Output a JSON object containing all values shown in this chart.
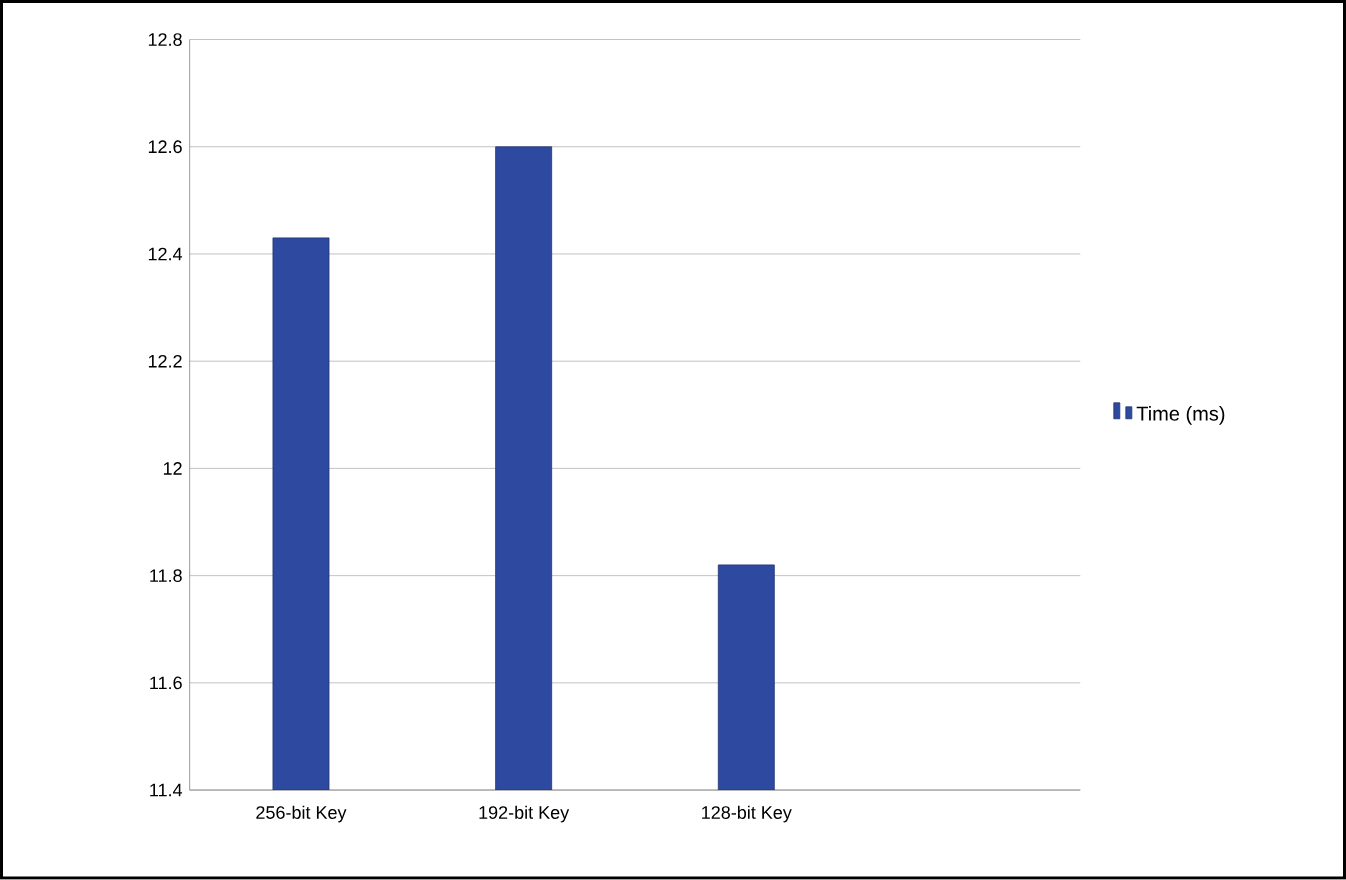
{
  "chart_data": {
    "type": "bar",
    "categories": [
      "256-bit Key",
      "192-bit Key",
      "128-bit Key",
      null
    ],
    "series": [
      {
        "name": "Time (ms)",
        "color": "#2e4aa0",
        "values": [
          12.43,
          12.6,
          11.82,
          null
        ]
      }
    ],
    "ylim": [
      11.4,
      12.8
    ],
    "yticks": [
      11.4,
      11.6,
      11.8,
      12,
      12.2,
      12.4,
      12.6,
      12.8
    ],
    "grid": "y",
    "legend": "right"
  }
}
